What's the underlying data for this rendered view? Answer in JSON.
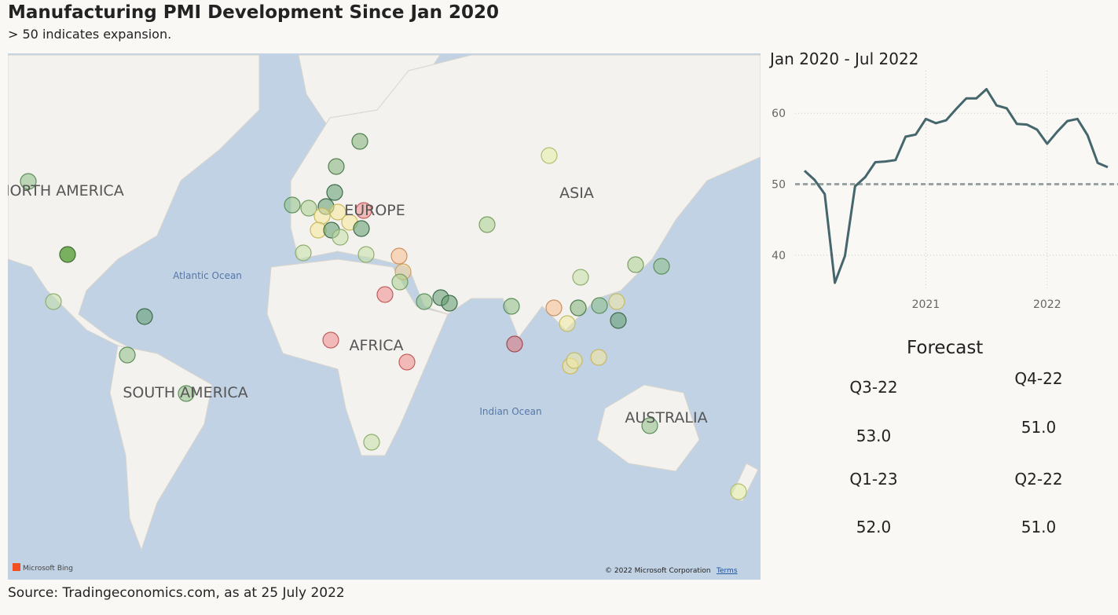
{
  "header": {
    "title": "Manufacturing PMI Development Since Jan 2020",
    "subtitle": "> 50 indicates expansion."
  },
  "map": {
    "labels": [
      "NORTH AMERICA",
      "SOUTH AMERICA",
      "EUROPE",
      "AFRICA",
      "ASIA",
      "AUSTRALIA"
    ],
    "oceans": [
      "Atlantic Ocean",
      "Indian Ocean"
    ],
    "attribution": "Microsoft Bing",
    "copyright": "© 2022 Microsoft Corporation",
    "terms": "Terms"
  },
  "chart_data": {
    "type": "line",
    "subtitle": "Jan 2020 - Jul 2022",
    "x": [
      "2020-01",
      "2020-02",
      "2020-03",
      "2020-04",
      "2020-05",
      "2020-06",
      "2020-07",
      "2020-08",
      "2020-09",
      "2020-10",
      "2020-11",
      "2020-12",
      "2021-01",
      "2021-02",
      "2021-03",
      "2021-04",
      "2021-05",
      "2021-06",
      "2021-07",
      "2021-08",
      "2021-09",
      "2021-10",
      "2021-11",
      "2021-12",
      "2022-01",
      "2022-02",
      "2022-03",
      "2022-04",
      "2022-05",
      "2022-06",
      "2022-07"
    ],
    "series": [
      {
        "color": "#45666c",
        "values": [
          51.9,
          50.6,
          48.6,
          36.1,
          39.9,
          49.7,
          51.0,
          53.1,
          53.2,
          53.4,
          56.7,
          57.0,
          59.2,
          58.6,
          59.0,
          60.6,
          62.1,
          62.1,
          63.4,
          61.1,
          60.7,
          58.5,
          58.4,
          57.7,
          55.7,
          57.4,
          58.9,
          59.2,
          56.9,
          53.0,
          52.4
        ]
      }
    ],
    "xlim": [
      "2020-01",
      "2022-07"
    ],
    "xticks": [
      {
        "value": "2021-01",
        "label": "2021"
      },
      {
        "value": "2022-01",
        "label": "2022"
      }
    ],
    "ylim": [
      35,
      66
    ],
    "yticks": [
      40,
      50,
      60
    ],
    "grid": true,
    "reference_line": 50
  },
  "forecast": {
    "title": "Forecast",
    "items": [
      {
        "label": "Q3-22",
        "value": "53.0"
      },
      {
        "label": "Q4-22",
        "value": "51.0"
      },
      {
        "label": "Q1-23",
        "value": "52.0"
      },
      {
        "label": "Q2-22",
        "value": "51.0"
      }
    ]
  },
  "source": "Source: Tradingeconomics.com, as at 25 July 2022"
}
